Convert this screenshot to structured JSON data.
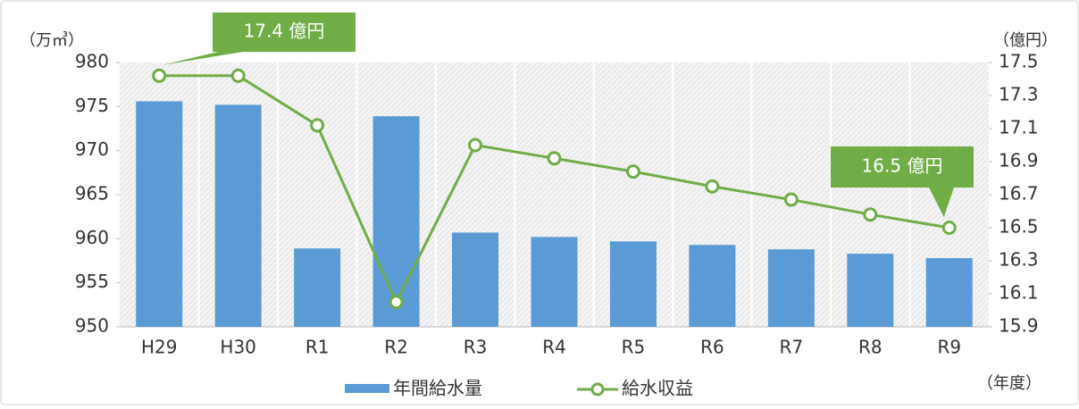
{
  "chart_data": {
    "type": "bar_line",
    "y_label": "（万㎥）",
    "y2_label": "（億円）",
    "x_label": "（年度）",
    "categories": [
      "H29",
      "H30",
      "R1",
      "R2",
      "R3",
      "R4",
      "R5",
      "R6",
      "R7",
      "R8",
      "R9"
    ],
    "series": [
      {
        "name": "年間給水量",
        "type": "bar",
        "color": "#5b9bd5",
        "values": [
          975.6,
          975.2,
          958.9,
          973.9,
          960.7,
          960.2,
          959.7,
          959.3,
          958.8,
          958.3,
          957.8
        ]
      },
      {
        "name": "給水収益",
        "type": "line",
        "axis": "y2",
        "color": "#70ad47",
        "values": [
          17.42,
          17.42,
          17.12,
          16.05,
          17.0,
          16.92,
          16.84,
          16.75,
          16.67,
          16.58,
          16.5
        ]
      }
    ],
    "ylim": [
      950,
      980
    ],
    "yticks": [
      950,
      955,
      960,
      965,
      970,
      975,
      980
    ],
    "y2lim": [
      15.9,
      17.5
    ],
    "y2ticks": [
      15.9,
      16.1,
      16.3,
      16.5,
      16.7,
      16.9,
      17.1,
      17.3,
      17.5
    ],
    "annotations": [
      {
        "text": "17.4 億円"
      },
      {
        "text": "16.5 億円"
      }
    ]
  }
}
